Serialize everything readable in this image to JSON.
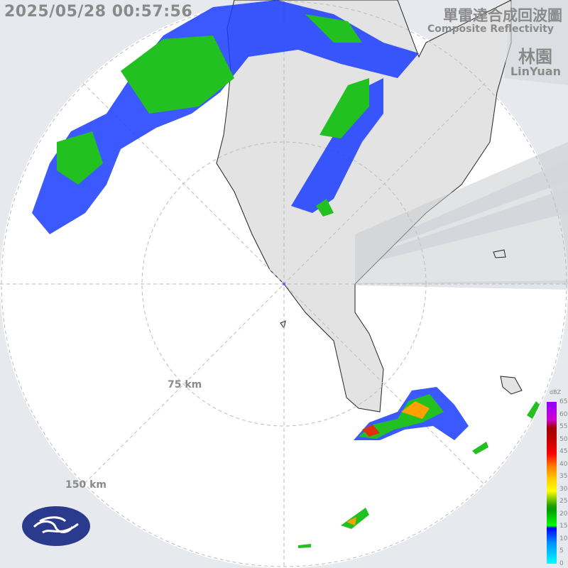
{
  "header": {
    "timestamp": "2025/05/28 00:57:56",
    "title_zh": "單雷達合成回波圖",
    "title_en": "Composite Reflectivity",
    "site_zh": "林園",
    "site_en": "LinYuan"
  },
  "range_rings": [
    "75 km",
    "150 km"
  ],
  "legend": {
    "unit": "dBZ",
    "ticks": [
      "65",
      "60",
      "55",
      "50",
      "45",
      "40",
      "35",
      "30",
      "25",
      "20",
      "15",
      "10",
      "5",
      "0"
    ]
  },
  "colors": {
    "background": "#e6e9ed",
    "radar_area": "#ffffff",
    "land": "#e3e3e3",
    "weak_echo": "#0030ff",
    "moderate_echo": "#00c000",
    "strong_echo": "#ff3000"
  },
  "logo": "cwa-logo-icon"
}
